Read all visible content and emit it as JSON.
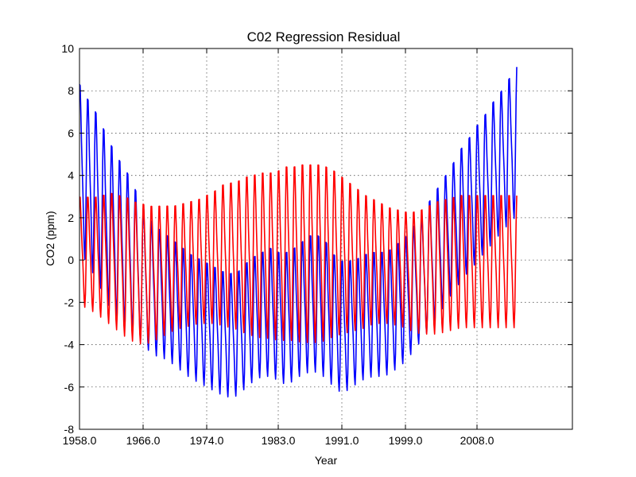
{
  "chart_data": {
    "type": "line",
    "title": "C02 Regression Residual",
    "xlabel": "Year",
    "ylabel": "CO2 (ppm)",
    "xlim": [
      1958.0,
      2020.0
    ],
    "ylim": [
      -8,
      10
    ],
    "grid": true,
    "x_ticks": [
      1958.0,
      1966.0,
      1974.0,
      1983.0,
      1991.0,
      1999.0,
      2008.0
    ],
    "x_tick_labels": [
      "1958.0",
      "1966.0",
      "1974.0",
      "1983.0",
      "1991.0",
      "1999.0",
      "2008.0"
    ],
    "y_ticks": [
      -8,
      -6,
      -4,
      -2,
      0,
      2,
      4,
      6,
      8,
      10
    ],
    "y_tick_labels": [
      "-8",
      "-6",
      "-4",
      "-2",
      "0",
      "2",
      "4",
      "6",
      "8",
      "10"
    ],
    "series": [
      {
        "color": "#0000ff",
        "x_start": 1958.0,
        "x_step": 1.0,
        "period_years": 1.0,
        "baseline": [
          4.5,
          3.8,
          3.2,
          2.4,
          1.6,
          1.0,
          0.6,
          0.0,
          -0.7,
          -1.2,
          -1.5,
          -1.7,
          -2.0,
          -2.3,
          -2.6,
          -2.8,
          -3.0,
          -3.2,
          -3.4,
          -3.5,
          -3.4,
          -3.0,
          -2.7,
          -2.5,
          -2.4,
          -2.6,
          -2.7,
          -2.5,
          -2.2,
          -2.0,
          -2.0,
          -2.3,
          -2.8,
          -3.1,
          -3.0,
          -2.8,
          -2.6,
          -2.5,
          -2.5,
          -2.4,
          -2.1,
          -1.8,
          -1.3,
          -0.8,
          -0.2,
          0.4,
          1.0,
          1.6,
          2.2,
          2.7,
          3.2,
          3.7,
          4.2,
          4.7,
          5.2,
          5.7
        ],
        "amplitude": [
          4.0,
          4.0,
          4.0,
          4.0,
          4.0,
          3.9,
          3.7,
          3.5,
          3.3,
          3.2,
          3.1,
          3.0,
          3.0,
          3.0,
          3.0,
          3.0,
          3.0,
          3.0,
          3.0,
          3.0,
          3.0,
          3.0,
          3.0,
          3.0,
          3.1,
          3.1,
          3.2,
          3.2,
          3.2,
          3.3,
          3.3,
          3.3,
          3.2,
          3.2,
          3.1,
          3.0,
          3.0,
          3.0,
          3.0,
          3.0,
          3.0,
          3.0,
          3.0,
          3.0,
          3.1,
          3.1,
          3.1,
          3.1,
          3.2,
          3.2,
          3.3,
          3.3,
          3.4,
          3.4,
          3.5,
          3.6
        ]
      },
      {
        "color": "#ff0000",
        "x_start": 1958.0,
        "x_step": 1.0,
        "period_years": 1.0,
        "baseline": [
          0.5,
          0.4,
          0.3,
          0.2,
          0.1,
          -0.1,
          -0.3,
          -0.5,
          -0.6,
          -0.6,
          -0.5,
          -0.4,
          -0.3,
          -0.2,
          -0.1,
          0.0,
          0.1,
          0.2,
          0.3,
          0.3,
          0.3,
          0.3,
          0.3,
          0.3,
          0.3,
          0.3,
          0.4,
          0.4,
          0.4,
          0.4,
          0.4,
          0.4,
          0.4,
          0.3,
          0.2,
          0.1,
          0.0,
          0.0,
          -0.1,
          -0.2,
          -0.3,
          -0.4,
          -0.5,
          -0.5,
          -0.4,
          -0.3,
          -0.2,
          -0.1,
          0.0,
          0.0,
          0.0,
          0.0,
          0.0,
          0.0,
          0.0,
          0.0
        ],
        "amplitude": [
          2.6,
          2.7,
          2.8,
          3.0,
          3.2,
          3.3,
          3.4,
          3.4,
          3.4,
          3.3,
          3.2,
          3.1,
          3.0,
          3.0,
          3.0,
          3.0,
          3.1,
          3.2,
          3.4,
          3.5,
          3.6,
          3.8,
          3.9,
          4.0,
          4.0,
          4.1,
          4.2,
          4.2,
          4.3,
          4.3,
          4.3,
          4.2,
          4.0,
          3.8,
          3.6,
          3.4,
          3.2,
          3.0,
          2.9,
          2.8,
          2.8,
          2.8,
          2.9,
          3.0,
          3.1,
          3.2,
          3.2,
          3.2,
          3.2,
          3.2,
          3.2,
          3.2,
          3.2,
          3.2,
          3.2,
          3.2
        ]
      }
    ]
  }
}
